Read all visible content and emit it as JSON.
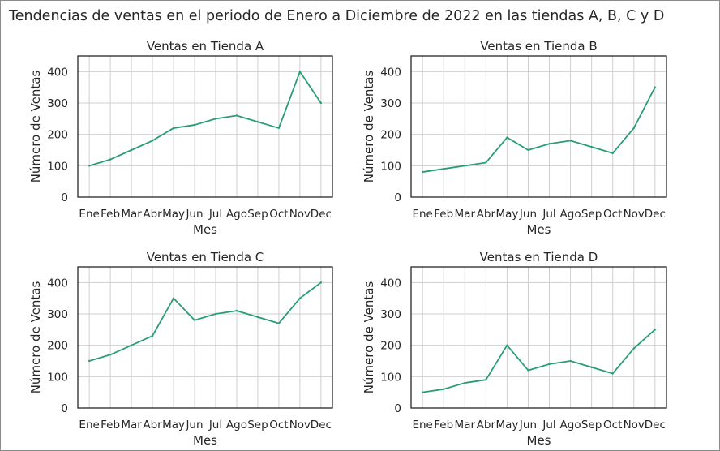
{
  "figure": {
    "title": "Tendencias de ventas en el periodo de Enero a Diciembre de 2022 en las tiendas A, B, C y D"
  },
  "colors": {
    "line": "#2a9d78",
    "grid": "#cfcfcf",
    "spine": "#262626",
    "text": "#262626"
  },
  "chart_data": [
    {
      "type": "line",
      "title": "Ventas en Tienda A",
      "xlabel": "Mes",
      "ylabel": "Número de Ventas",
      "categories": [
        "Ene",
        "Feb",
        "Mar",
        "Abr",
        "May",
        "Jun",
        "Jul",
        "Ago",
        "Sep",
        "Oct",
        "Nov",
        "Dec"
      ],
      "values": [
        100,
        120,
        150,
        180,
        220,
        230,
        250,
        260,
        240,
        220,
        400,
        300
      ],
      "ylim": [
        0,
        450
      ],
      "yticks": [
        0,
        100,
        200,
        300,
        400
      ],
      "grid": true
    },
    {
      "type": "line",
      "title": "Ventas en Tienda B",
      "xlabel": "Mes",
      "ylabel": "Número de Ventas",
      "categories": [
        "Ene",
        "Feb",
        "Mar",
        "Abr",
        "May",
        "Jun",
        "Jul",
        "Ago",
        "Sep",
        "Oct",
        "Nov",
        "Dec"
      ],
      "values": [
        80,
        90,
        100,
        110,
        190,
        150,
        170,
        180,
        160,
        140,
        220,
        350
      ],
      "ylim": [
        0,
        450
      ],
      "yticks": [
        0,
        100,
        200,
        300,
        400
      ],
      "grid": true
    },
    {
      "type": "line",
      "title": "Ventas en Tienda C",
      "xlabel": "Mes",
      "ylabel": "Número de Ventas",
      "categories": [
        "Ene",
        "Feb",
        "Mar",
        "Abr",
        "May",
        "Jun",
        "Jul",
        "Ago",
        "Sep",
        "Oct",
        "Nov",
        "Dec"
      ],
      "values": [
        150,
        170,
        200,
        230,
        350,
        280,
        300,
        310,
        290,
        270,
        350,
        400
      ],
      "ylim": [
        0,
        450
      ],
      "yticks": [
        0,
        100,
        200,
        300,
        400
      ],
      "grid": true
    },
    {
      "type": "line",
      "title": "Ventas en Tienda D",
      "xlabel": "Mes",
      "ylabel": "Número de Ventas",
      "categories": [
        "Ene",
        "Feb",
        "Mar",
        "Abr",
        "May",
        "Jun",
        "Jul",
        "Ago",
        "Sep",
        "Oct",
        "Nov",
        "Dec"
      ],
      "values": [
        50,
        60,
        80,
        90,
        200,
        120,
        140,
        150,
        130,
        110,
        190,
        250
      ],
      "ylim": [
        0,
        450
      ],
      "yticks": [
        0,
        100,
        200,
        300,
        400
      ],
      "grid": true
    }
  ]
}
